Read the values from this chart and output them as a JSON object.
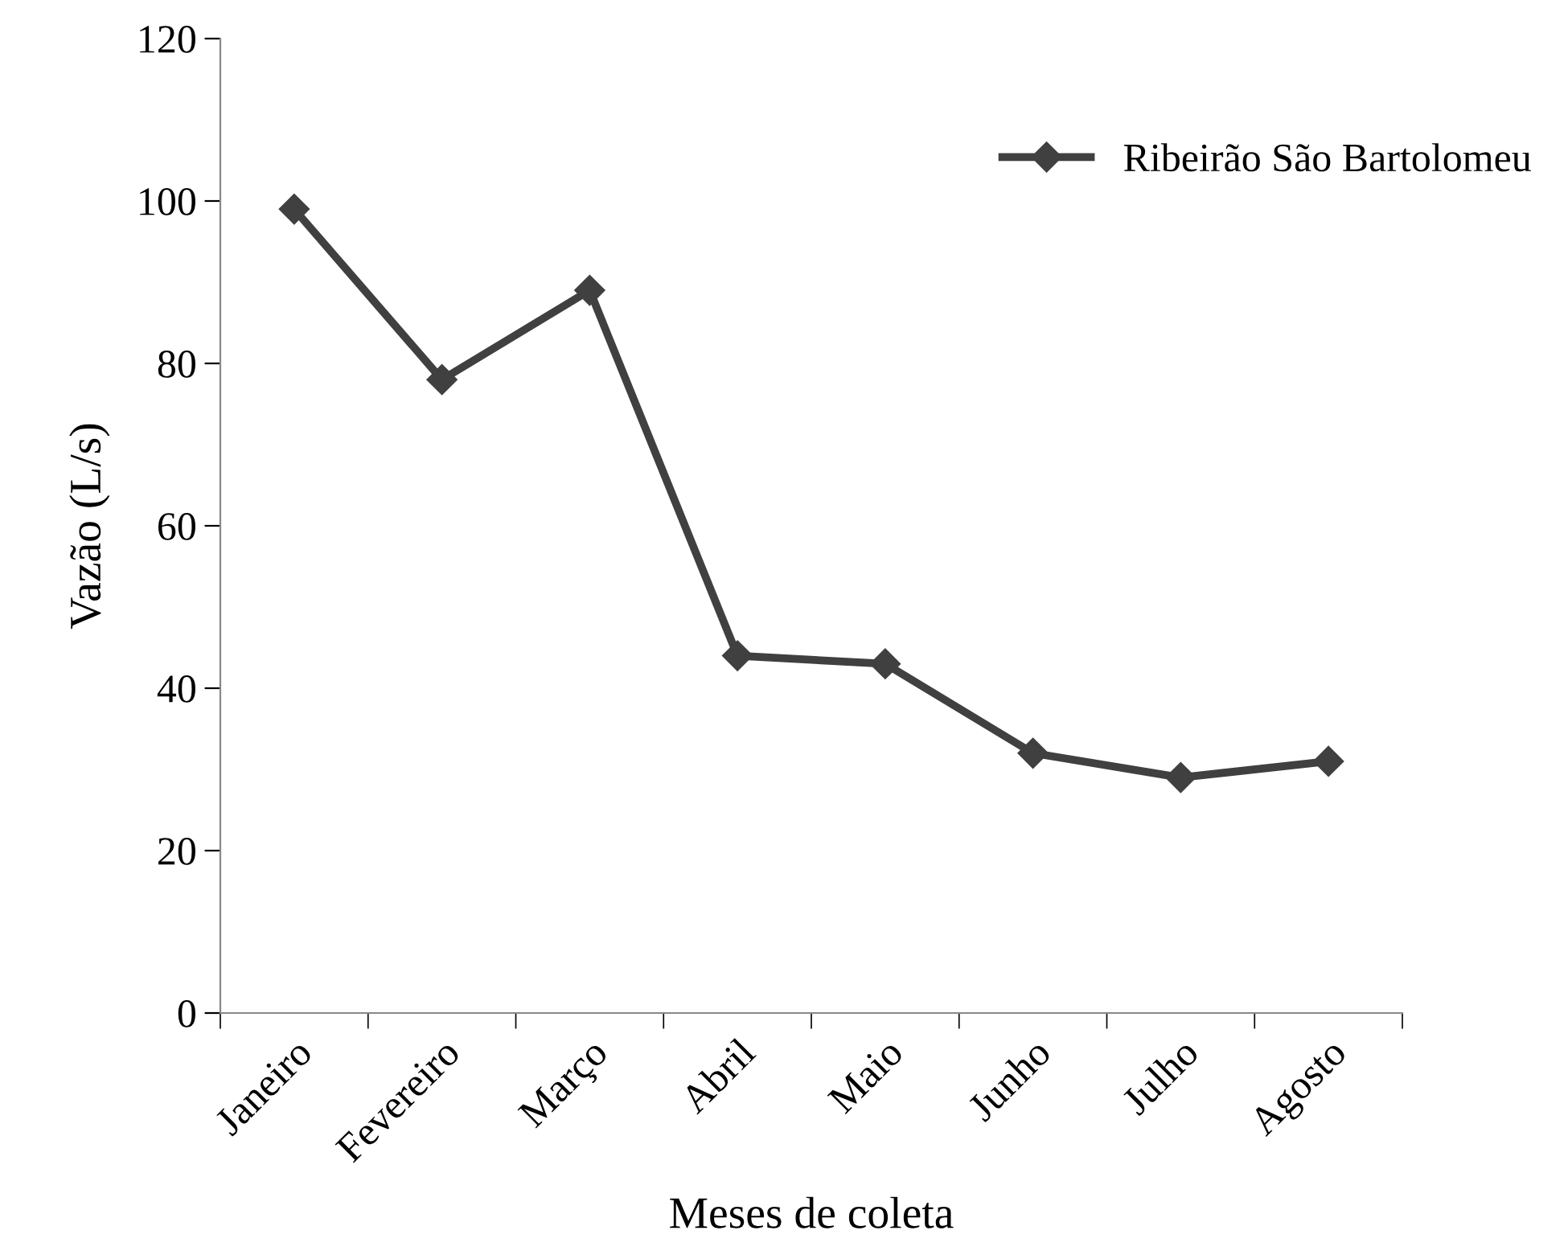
{
  "chart_data": {
    "type": "line",
    "xlabel": "Meses de coleta",
    "ylabel": "Vazão (L/s)",
    "categories": [
      "Janeiro",
      "Fevereiro",
      "Março",
      "Abril",
      "Maio",
      "Junho",
      "Julho",
      "Agosto"
    ],
    "series": [
      {
        "name": "Ribeirão São Bartolomeu",
        "color": "#404040",
        "values": [
          99,
          78,
          89,
          44,
          43,
          32,
          29,
          31
        ]
      }
    ],
    "ylim": [
      0,
      120
    ],
    "yticks": [
      0,
      20,
      40,
      60,
      80,
      100,
      120
    ],
    "grid": false,
    "legend": "top right",
    "marker": "diamond",
    "line_style": "solid"
  }
}
